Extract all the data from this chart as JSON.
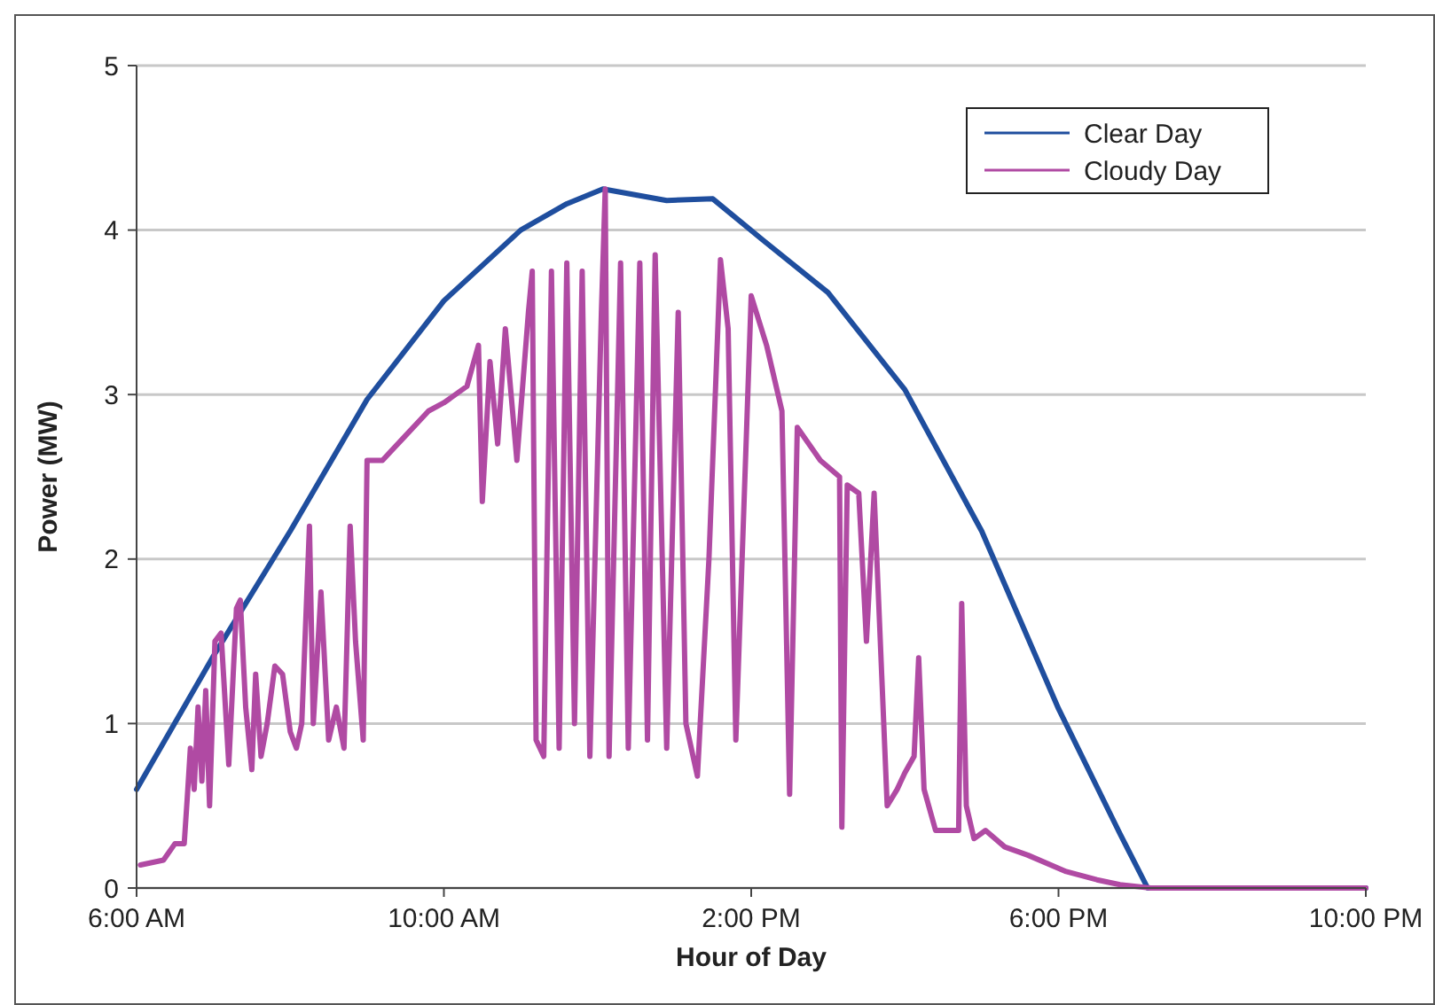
{
  "chart_data": {
    "type": "line",
    "xlabel": "Hour of Day",
    "ylabel": "Power (MW)",
    "xlim": [
      6,
      22
    ],
    "xticks": [
      {
        "value": 6,
        "label": "6:00 AM"
      },
      {
        "value": 10,
        "label": "10:00 AM"
      },
      {
        "value": 14,
        "label": "2:00 PM"
      },
      {
        "value": 18,
        "label": "6:00 PM"
      },
      {
        "value": 22,
        "label": "10:00 PM"
      }
    ],
    "ylim": [
      0,
      5
    ],
    "yticks": [
      0,
      1,
      2,
      3,
      4,
      5
    ],
    "grid": "y",
    "legend": "top right",
    "marker": "none",
    "line_style": "solid",
    "series": [
      {
        "name": "Clear Day",
        "color": "#1f4e9e",
        "x": [
          6,
          7,
          8,
          9,
          10,
          11,
          11.6,
          12.07,
          12.9,
          13.5,
          14.15,
          15,
          16,
          17,
          18,
          18.8,
          19.16,
          22
        ],
        "values": [
          0.6,
          1.41,
          2.17,
          2.97,
          3.57,
          4.0,
          4.16,
          4.25,
          4.18,
          4.19,
          3.94,
          3.62,
          3.03,
          2.17,
          1.09,
          0.33,
          0,
          0
        ]
      },
      {
        "name": "Cloudy Day",
        "color": "#b04aa3",
        "x": [
          6.05,
          6.35,
          6.5,
          6.62,
          6.66,
          6.7,
          6.75,
          6.8,
          6.85,
          6.9,
          6.95,
          7.02,
          7.1,
          7.2,
          7.3,
          7.35,
          7.42,
          7.5,
          7.55,
          7.62,
          7.7,
          7.8,
          7.9,
          8.0,
          8.08,
          8.15,
          8.25,
          8.3,
          8.4,
          8.5,
          8.6,
          8.7,
          8.78,
          8.85,
          8.95,
          9.0,
          9.2,
          9.5,
          9.8,
          10.0,
          10.3,
          10.45,
          10.5,
          10.6,
          10.7,
          10.8,
          10.95,
          11.1,
          11.15,
          11.2,
          11.3,
          11.4,
          11.5,
          11.6,
          11.7,
          11.8,
          11.9,
          12.05,
          12.1,
          12.15,
          12.3,
          12.4,
          12.55,
          12.65,
          12.75,
          12.9,
          13.05,
          13.15,
          13.3,
          13.45,
          13.6,
          13.7,
          13.8,
          14.0,
          14.2,
          14.4,
          14.5,
          14.6,
          14.9,
          15.15,
          15.18,
          15.25,
          15.4,
          15.5,
          15.6,
          15.77,
          15.9,
          16.0,
          16.12,
          16.18,
          16.25,
          16.4,
          16.7,
          16.74,
          16.8,
          16.9,
          17.05,
          17.3,
          17.6,
          18.1,
          18.5,
          18.8,
          19.2,
          22
        ],
        "values": [
          0.14,
          0.17,
          0.27,
          0.27,
          0.55,
          0.85,
          0.6,
          1.1,
          0.65,
          1.2,
          0.5,
          1.5,
          1.55,
          0.75,
          1.7,
          1.75,
          1.1,
          0.72,
          1.3,
          0.8,
          1.0,
          1.35,
          1.3,
          0.95,
          0.85,
          1.0,
          2.2,
          1.0,
          1.8,
          0.9,
          1.1,
          0.85,
          2.2,
          1.5,
          0.9,
          2.6,
          2.6,
          2.75,
          2.9,
          2.95,
          3.05,
          3.3,
          2.35,
          3.2,
          2.7,
          3.4,
          2.6,
          3.5,
          3.75,
          0.9,
          0.8,
          3.75,
          0.85,
          3.8,
          1.0,
          3.75,
          0.8,
          3.5,
          4.25,
          0.8,
          3.8,
          0.85,
          3.8,
          0.9,
          3.85,
          0.85,
          3.5,
          1.0,
          0.68,
          2.0,
          3.82,
          3.4,
          0.9,
          3.6,
          3.3,
          2.9,
          0.57,
          2.8,
          2.6,
          2.5,
          0.37,
          2.45,
          2.4,
          1.5,
          2.4,
          0.5,
          0.6,
          0.7,
          0.8,
          1.4,
          0.6,
          0.35,
          0.35,
          1.73,
          0.5,
          0.3,
          0.35,
          0.25,
          0.2,
          0.1,
          0.05,
          0.02,
          0,
          0
        ]
      }
    ]
  }
}
